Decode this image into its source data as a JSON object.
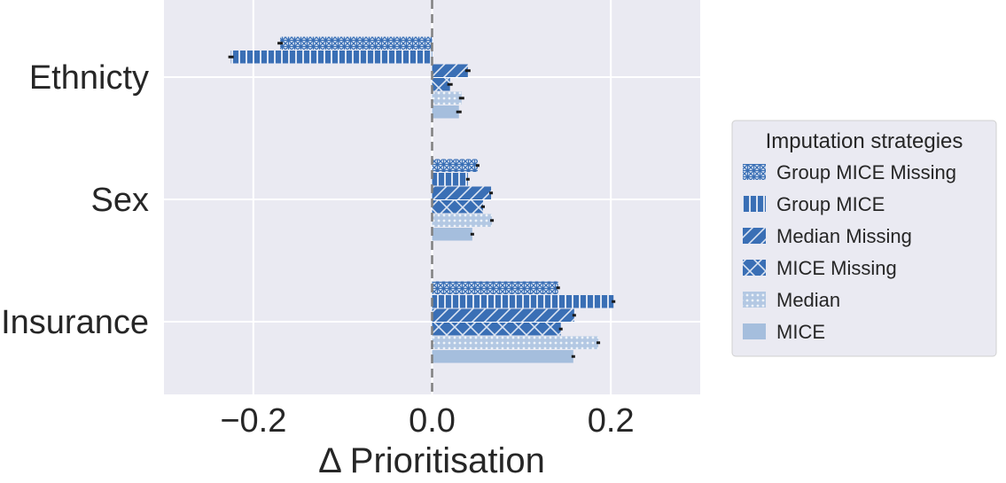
{
  "chart_data": {
    "type": "bar",
    "orientation": "horizontal",
    "categories": [
      "Ethnicty",
      "Sex",
      "Insurance"
    ],
    "xlabel": "Δ Prioritisation",
    "xlim": [
      -0.3,
      0.3
    ],
    "xticks": [
      -0.2,
      0.0,
      0.2
    ],
    "xtick_labels": [
      "−0.2",
      "0.0",
      "0.2"
    ],
    "grid": true,
    "reference_line": 0.0,
    "series": [
      {
        "name": "Group MICE Missing",
        "values": [
          -0.17,
          0.051,
          0.141
        ],
        "errors": [
          0.003,
          0.002,
          0.002
        ],
        "color": "#4a7cbf",
        "pattern": "stars"
      },
      {
        "name": "Group MICE",
        "values": [
          -0.225,
          0.04,
          0.203
        ],
        "errors": [
          0.003,
          0.002,
          0.002
        ],
        "color": "#3a6fb5",
        "pattern": "vlines"
      },
      {
        "name": "Median Missing",
        "values": [
          0.04,
          0.066,
          0.159
        ],
        "errors": [
          0.003,
          0.002,
          0.002
        ],
        "color": "#3a6fb5",
        "pattern": "diag"
      },
      {
        "name": "MICE Missing",
        "values": [
          0.02,
          0.057,
          0.144
        ],
        "errors": [
          0.003,
          0.002,
          0.002
        ],
        "color": "#3a6fb5",
        "pattern": "cross"
      },
      {
        "name": "Median",
        "values": [
          0.033,
          0.067,
          0.186
        ],
        "errors": [
          0.003,
          0.002,
          0.002
        ],
        "color": "#b3c8e3",
        "pattern": "dots"
      },
      {
        "name": "MICE",
        "values": [
          0.03,
          0.045,
          0.158
        ],
        "errors": [
          0.003,
          0.002,
          0.002
        ],
        "color": "#a5bedd",
        "pattern": "solid"
      }
    ],
    "legend": {
      "title": "Imputation strategies",
      "placement": "outside-right"
    }
  }
}
